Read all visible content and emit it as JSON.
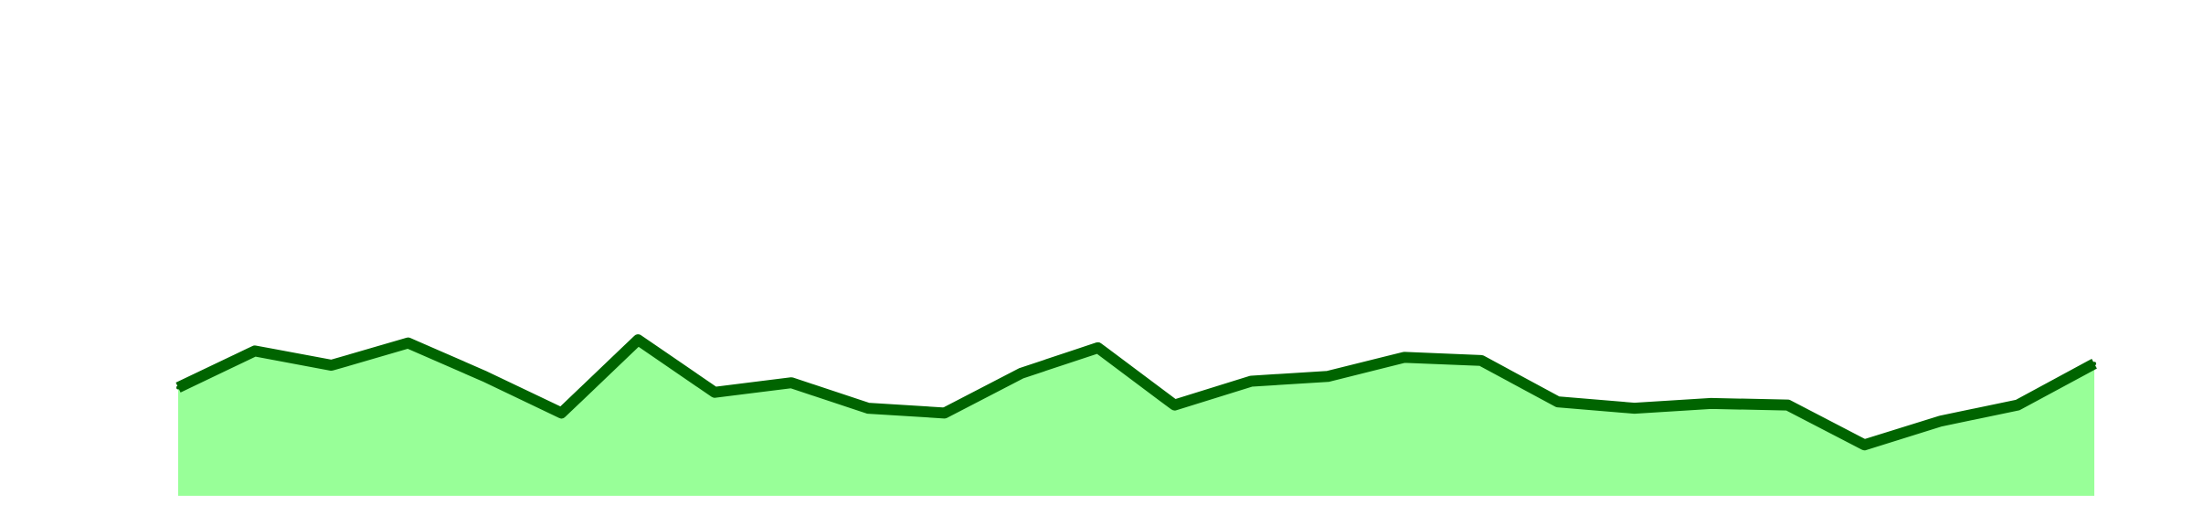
{
  "chart_data": {
    "type": "area",
    "title": "",
    "xlabel": "",
    "ylabel": "",
    "x": [
      0,
      1,
      2,
      3,
      4,
      5,
      6,
      7,
      8,
      9,
      10,
      11,
      12,
      13,
      14,
      15,
      16,
      17,
      18,
      19,
      20,
      21,
      22,
      23,
      24,
      25
    ],
    "series": [
      {
        "values": [
          6.8,
          9.1,
          8.2,
          9.6,
          7.5,
          5.2,
          9.8,
          6.5,
          7.1,
          5.5,
          5.2,
          7.7,
          9.3,
          5.7,
          7.2,
          7.5,
          8.7,
          8.5,
          5.9,
          5.5,
          5.8,
          5.7,
          3.2,
          4.7,
          5.7,
          8.3
        ]
      }
    ],
    "xlim": [
      0,
      25
    ],
    "ylim": [
      0,
      30
    ],
    "grid": false,
    "legend": "none",
    "colors": {
      "line": "#006400",
      "fill": "#98ff98",
      "background": "#ffffff"
    }
  }
}
